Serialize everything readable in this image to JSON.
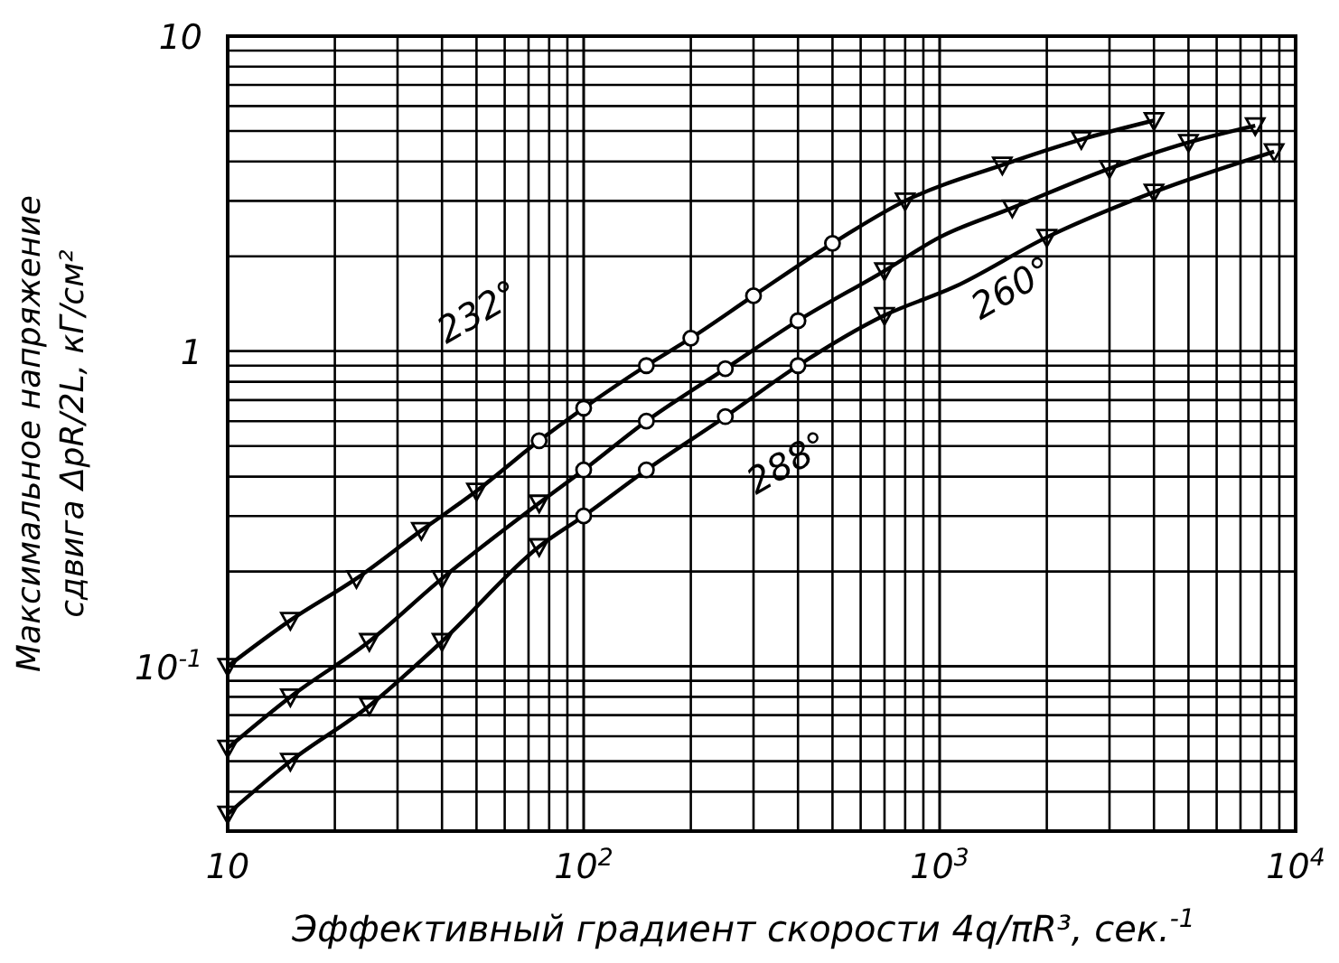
{
  "chart_data": {
    "type": "line",
    "xlabel": "Эффективный градиент скорости 4q/πR³, сек.$^{-1}$",
    "ylabel": "Максимальное напряжение\nсдвига ΔpR/2L, кГ/см²",
    "log": "xy",
    "grid": true,
    "line_style": "solid",
    "xlim": [
      10,
      10000
    ],
    "ylim": [
      0.03,
      10
    ],
    "xticks": [
      10,
      {
        "value": 100,
        "label": "10$^{2}$"
      },
      {
        "value": 1000,
        "label": "10$^{3}$"
      },
      {
        "value": 10000,
        "label": "10$^{4}$"
      }
    ],
    "yticks": [
      {
        "value": 0.1,
        "label": "10$^{-1}$"
      },
      1,
      10
    ],
    "series": [
      {
        "color": "#000000",
        "marker": "none",
        "x": [
          10,
          15,
          23,
          35,
          50,
          75,
          100,
          150,
          200,
          300,
          500,
          800,
          1500,
          2500,
          4000
        ],
        "values": [
          0.1,
          0.14,
          0.19,
          0.27,
          0.36,
          0.52,
          0.66,
          0.9,
          1.1,
          1.5,
          2.2,
          3.0,
          3.9,
          4.7,
          5.4
        ]
      },
      {
        "color": "#000000",
        "marker": "none",
        "x": [
          10,
          15,
          25,
          40,
          75,
          100,
          150,
          250,
          400,
          700,
          1000,
          1600,
          3000,
          5000,
          7700
        ],
        "values": [
          0.055,
          0.08,
          0.12,
          0.19,
          0.33,
          0.42,
          0.6,
          0.88,
          1.25,
          1.8,
          2.3,
          2.85,
          3.8,
          4.6,
          5.2
        ]
      },
      {
        "color": "#000000",
        "marker": "none",
        "x": [
          10,
          15,
          25,
          40,
          75,
          100,
          150,
          250,
          400,
          700,
          1100,
          2000,
          4000,
          8700
        ],
        "values": [
          0.034,
          0.05,
          0.075,
          0.12,
          0.24,
          0.3,
          0.42,
          0.62,
          0.9,
          1.3,
          1.6,
          2.3,
          3.2,
          4.3
        ]
      },
      {
        "type": "scatter",
        "color": "#000000",
        "marker": "triangle",
        "x": [
          10,
          15,
          23,
          35,
          50,
          800,
          1500,
          2500,
          4000,
          10,
          15,
          25,
          40,
          75,
          700,
          1600,
          3000,
          5000,
          7700,
          10,
          15,
          25,
          40,
          75,
          700,
          2000,
          4000,
          8700
        ],
        "values": [
          0.1,
          0.14,
          0.19,
          0.27,
          0.36,
          3.0,
          3.9,
          4.7,
          5.4,
          0.055,
          0.08,
          0.12,
          0.19,
          0.33,
          1.8,
          2.85,
          3.8,
          4.6,
          5.2,
          0.034,
          0.05,
          0.075,
          0.12,
          0.24,
          1.3,
          2.3,
          3.2,
          4.3
        ]
      },
      {
        "type": "scatter",
        "color": "#000000",
        "marker": "circle",
        "x": [
          75,
          100,
          150,
          200,
          300,
          500,
          100,
          150,
          250,
          400,
          100,
          150,
          250,
          400
        ],
        "values": [
          0.52,
          0.66,
          0.9,
          1.1,
          1.5,
          2.2,
          0.42,
          0.6,
          0.88,
          1.25,
          0.3,
          0.42,
          0.62,
          0.9
        ]
      }
    ],
    "annotations": [
      "232°",
      "260°",
      "288°"
    ]
  }
}
